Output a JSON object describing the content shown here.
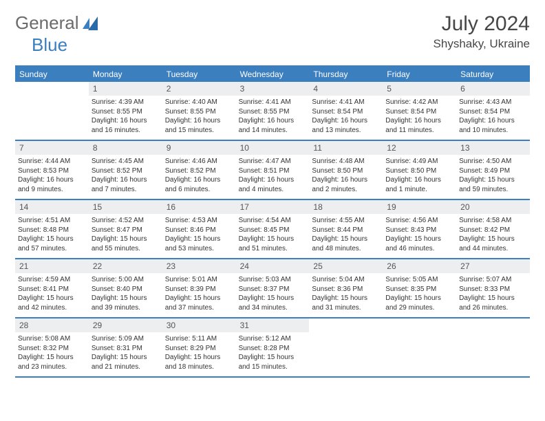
{
  "logo": {
    "text1": "General",
    "text2": "Blue"
  },
  "title": {
    "month": "July 2024",
    "location": "Shyshaky, Ukraine"
  },
  "colors": {
    "header_bg": "#3b7fbf",
    "header_text": "#ffffff",
    "num_bg": "#eceef0",
    "border": "#3b7fbf",
    "title_text": "#474747",
    "body_text": "#333333",
    "logo_gray": "#6b6b6b"
  },
  "fonts": {
    "title_size": 30,
    "loc_size": 17,
    "header_size": 12,
    "cell_size": 10
  },
  "dayNames": [
    "Sunday",
    "Monday",
    "Tuesday",
    "Wednesday",
    "Thursday",
    "Friday",
    "Saturday"
  ],
  "weeks": [
    [
      null,
      {
        "d": "1",
        "sr": "4:39 AM",
        "ss": "8:55 PM",
        "dl": "16 hours and 16 minutes."
      },
      {
        "d": "2",
        "sr": "4:40 AM",
        "ss": "8:55 PM",
        "dl": "16 hours and 15 minutes."
      },
      {
        "d": "3",
        "sr": "4:41 AM",
        "ss": "8:55 PM",
        "dl": "16 hours and 14 minutes."
      },
      {
        "d": "4",
        "sr": "4:41 AM",
        "ss": "8:54 PM",
        "dl": "16 hours and 13 minutes."
      },
      {
        "d": "5",
        "sr": "4:42 AM",
        "ss": "8:54 PM",
        "dl": "16 hours and 11 minutes."
      },
      {
        "d": "6",
        "sr": "4:43 AM",
        "ss": "8:54 PM",
        "dl": "16 hours and 10 minutes."
      }
    ],
    [
      {
        "d": "7",
        "sr": "4:44 AM",
        "ss": "8:53 PM",
        "dl": "16 hours and 9 minutes."
      },
      {
        "d": "8",
        "sr": "4:45 AM",
        "ss": "8:52 PM",
        "dl": "16 hours and 7 minutes."
      },
      {
        "d": "9",
        "sr": "4:46 AM",
        "ss": "8:52 PM",
        "dl": "16 hours and 6 minutes."
      },
      {
        "d": "10",
        "sr": "4:47 AM",
        "ss": "8:51 PM",
        "dl": "16 hours and 4 minutes."
      },
      {
        "d": "11",
        "sr": "4:48 AM",
        "ss": "8:50 PM",
        "dl": "16 hours and 2 minutes."
      },
      {
        "d": "12",
        "sr": "4:49 AM",
        "ss": "8:50 PM",
        "dl": "16 hours and 1 minute."
      },
      {
        "d": "13",
        "sr": "4:50 AM",
        "ss": "8:49 PM",
        "dl": "15 hours and 59 minutes."
      }
    ],
    [
      {
        "d": "14",
        "sr": "4:51 AM",
        "ss": "8:48 PM",
        "dl": "15 hours and 57 minutes."
      },
      {
        "d": "15",
        "sr": "4:52 AM",
        "ss": "8:47 PM",
        "dl": "15 hours and 55 minutes."
      },
      {
        "d": "16",
        "sr": "4:53 AM",
        "ss": "8:46 PM",
        "dl": "15 hours and 53 minutes."
      },
      {
        "d": "17",
        "sr": "4:54 AM",
        "ss": "8:45 PM",
        "dl": "15 hours and 51 minutes."
      },
      {
        "d": "18",
        "sr": "4:55 AM",
        "ss": "8:44 PM",
        "dl": "15 hours and 48 minutes."
      },
      {
        "d": "19",
        "sr": "4:56 AM",
        "ss": "8:43 PM",
        "dl": "15 hours and 46 minutes."
      },
      {
        "d": "20",
        "sr": "4:58 AM",
        "ss": "8:42 PM",
        "dl": "15 hours and 44 minutes."
      }
    ],
    [
      {
        "d": "21",
        "sr": "4:59 AM",
        "ss": "8:41 PM",
        "dl": "15 hours and 42 minutes."
      },
      {
        "d": "22",
        "sr": "5:00 AM",
        "ss": "8:40 PM",
        "dl": "15 hours and 39 minutes."
      },
      {
        "d": "23",
        "sr": "5:01 AM",
        "ss": "8:39 PM",
        "dl": "15 hours and 37 minutes."
      },
      {
        "d": "24",
        "sr": "5:03 AM",
        "ss": "8:37 PM",
        "dl": "15 hours and 34 minutes."
      },
      {
        "d": "25",
        "sr": "5:04 AM",
        "ss": "8:36 PM",
        "dl": "15 hours and 31 minutes."
      },
      {
        "d": "26",
        "sr": "5:05 AM",
        "ss": "8:35 PM",
        "dl": "15 hours and 29 minutes."
      },
      {
        "d": "27",
        "sr": "5:07 AM",
        "ss": "8:33 PM",
        "dl": "15 hours and 26 minutes."
      }
    ],
    [
      {
        "d": "28",
        "sr": "5:08 AM",
        "ss": "8:32 PM",
        "dl": "15 hours and 23 minutes."
      },
      {
        "d": "29",
        "sr": "5:09 AM",
        "ss": "8:31 PM",
        "dl": "15 hours and 21 minutes."
      },
      {
        "d": "30",
        "sr": "5:11 AM",
        "ss": "8:29 PM",
        "dl": "15 hours and 18 minutes."
      },
      {
        "d": "31",
        "sr": "5:12 AM",
        "ss": "8:28 PM",
        "dl": "15 hours and 15 minutes."
      },
      null,
      null,
      null
    ]
  ],
  "labels": {
    "sunrise": "Sunrise:",
    "sunset": "Sunset:",
    "daylight": "Daylight:"
  }
}
